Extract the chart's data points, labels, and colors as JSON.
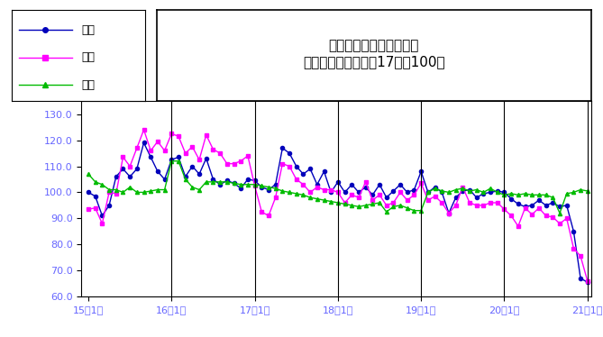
{
  "title_line1": "鳥取県鉱工業指数の推移",
  "title_line2": "（季節調整済、平成17年＝100）",
  "xlabel_ticks": [
    "15年1月",
    "16年1月",
    "17年1月",
    "18年1月",
    "19年1月",
    "20年1月",
    "21年1月"
  ],
  "ylim": [
    60.0,
    135.0
  ],
  "yticks": [
    60.0,
    70.0,
    80.0,
    90.0,
    100.0,
    110.0,
    120.0,
    130.0
  ],
  "ytick_labels": [
    "60.0",
    "70.0",
    "80.0",
    "90.0",
    "100.0",
    "110.0",
    "120.0",
    "130.0"
  ],
  "vlines_x": [
    12,
    24,
    36,
    48,
    60,
    72
  ],
  "legend_labels": [
    "生産",
    "出荷",
    "在庫"
  ],
  "line_colors": [
    "#0000bb",
    "#ff00ff",
    "#00bb00"
  ],
  "line_markers": [
    "o",
    "s",
    "^"
  ],
  "tick_color": "#6666ff",
  "background_color": "#ffffff",
  "production": [
    100.0,
    98.5,
    91.0,
    95.0,
    106.0,
    109.0,
    106.0,
    109.0,
    119.0,
    113.5,
    108.0,
    105.0,
    112.5,
    113.5,
    106.0,
    110.0,
    107.0,
    113.0,
    105.0,
    103.0,
    104.5,
    103.5,
    101.5,
    105.0,
    104.5,
    102.0,
    101.0,
    103.0,
    117.0,
    115.0,
    110.0,
    107.0,
    109.0,
    103.0,
    108.0,
    100.0,
    104.0,
    100.0,
    103.0,
    100.0,
    102.0,
    99.0,
    103.0,
    98.0,
    100.5,
    103.0,
    100.0,
    101.0,
    108.0,
    100.0,
    102.0,
    100.0,
    92.0,
    98.0,
    100.5,
    101.0,
    98.0,
    99.5,
    100.0,
    100.5,
    100.0,
    97.5,
    95.5,
    94.5,
    95.0,
    97.0,
    95.0,
    96.0,
    94.5,
    95.0,
    85.0,
    67.0,
    65.5
  ],
  "shipment": [
    93.5,
    94.0,
    88.0,
    100.0,
    99.5,
    113.5,
    110.0,
    117.0,
    124.0,
    116.0,
    119.5,
    116.0,
    122.5,
    121.5,
    115.0,
    117.5,
    112.5,
    122.0,
    116.5,
    115.0,
    111.0,
    111.0,
    112.0,
    114.0,
    102.5,
    92.5,
    91.0,
    98.0,
    111.0,
    110.0,
    105.0,
    103.0,
    100.0,
    102.0,
    101.0,
    101.0,
    100.0,
    96.0,
    99.0,
    98.0,
    104.0,
    97.0,
    99.0,
    95.0,
    96.0,
    100.0,
    97.0,
    99.0,
    103.5,
    97.0,
    98.5,
    96.0,
    92.0,
    95.0,
    102.0,
    96.0,
    95.0,
    95.0,
    96.0,
    96.0,
    93.5,
    91.0,
    87.0,
    94.0,
    91.5,
    94.0,
    91.0,
    90.5,
    88.0,
    90.0,
    78.5,
    75.5,
    66.0
  ],
  "inventory": [
    107.0,
    104.0,
    103.0,
    101.0,
    101.0,
    100.0,
    102.0,
    100.0,
    100.0,
    100.5,
    101.0,
    101.0,
    112.0,
    112.0,
    105.0,
    102.0,
    101.0,
    104.0,
    104.0,
    104.0,
    104.0,
    103.5,
    103.0,
    103.0,
    103.0,
    102.5,
    102.0,
    101.5,
    100.5,
    100.0,
    99.5,
    99.0,
    98.0,
    97.5,
    97.0,
    96.5,
    96.0,
    95.5,
    95.0,
    94.5,
    95.0,
    95.5,
    96.0,
    92.5,
    94.5,
    95.0,
    94.0,
    93.0,
    93.0,
    100.0,
    101.5,
    100.5,
    100.0,
    101.0,
    101.5,
    100.5,
    101.0,
    100.0,
    101.5,
    100.0,
    99.0,
    99.5,
    99.0,
    99.5,
    99.0,
    99.0,
    99.0,
    98.0,
    92.0,
    99.5,
    100.0,
    101.0,
    100.5
  ]
}
